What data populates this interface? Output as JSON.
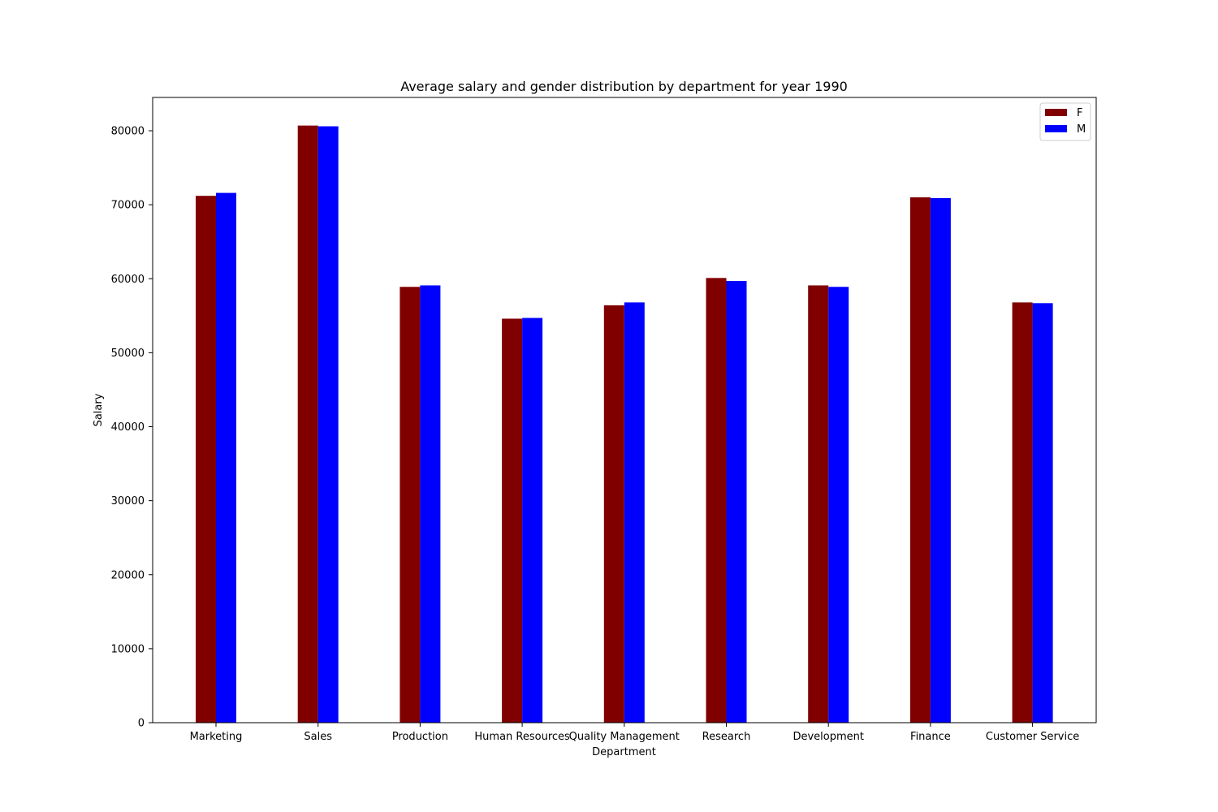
{
  "chart_data": {
    "type": "bar",
    "title": "Average salary and gender distribution by department for year 1990",
    "xlabel": "Department",
    "ylabel": "Salary",
    "ylim": [
      0,
      84500
    ],
    "yticks": [
      0,
      10000,
      20000,
      30000,
      40000,
      50000,
      60000,
      70000,
      80000
    ],
    "grid": false,
    "legend_position": "top-right",
    "categories": [
      "Marketing",
      "Sales",
      "Production",
      "Human Resources",
      "Quality Management",
      "Research",
      "Development",
      "Finance",
      "Customer Service"
    ],
    "series": [
      {
        "name": "F",
        "color": "#800000",
        "values": [
          71200,
          80700,
          58900,
          54600,
          56400,
          60100,
          59100,
          71000,
          56800
        ]
      },
      {
        "name": "M",
        "color": "#0000ff",
        "values": [
          71600,
          80600,
          59100,
          54700,
          56800,
          59700,
          58900,
          70900,
          56700
        ]
      }
    ]
  }
}
